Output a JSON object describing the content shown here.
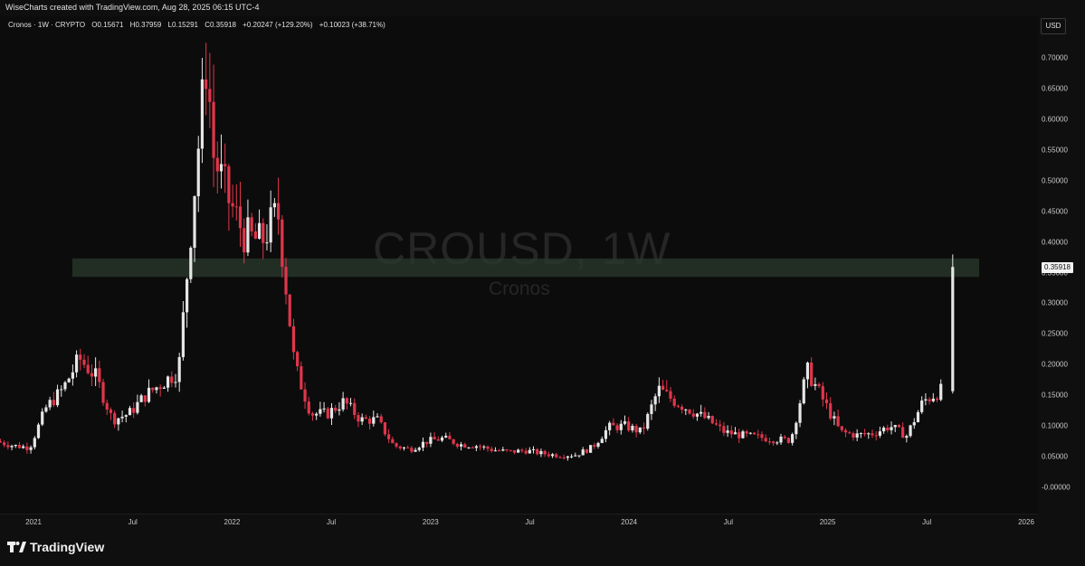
{
  "header": {
    "created_text": "WiseCharts created with TradingView.com, Aug 28, 2025 06:15 UTC-4",
    "legend": {
      "symbol": "Cronos · 1W · CRYPTO",
      "open": "O0.15671",
      "high": "H0.37959",
      "low": "L0.15291",
      "close": "C0.35918",
      "change": "+0.20247 (+129.20%)",
      "extra": "+0.10023 (+38.71%)"
    },
    "currency_button": "USD"
  },
  "watermark": {
    "ticker": "CROUSD, 1W",
    "name": "Cronos"
  },
  "current_price_label": "0.35918",
  "footer": {
    "logo_text": "TradingView"
  },
  "colors": {
    "up": "#e6e6e6",
    "down": "#e0364b",
    "zone": "#2a3a2c",
    "background": "#0c0c0c"
  },
  "chart_data": {
    "type": "candlestick",
    "interval": "1W",
    "y_tick_labels": [
      "0.70000",
      "0.65000",
      "0.60000",
      "0.55000",
      "0.50000",
      "0.45000",
      "0.40000",
      "0.35000",
      "0.30000",
      "0.25000",
      "0.20000",
      "0.15000",
      "0.10000",
      "0.05000",
      "-0.00000"
    ],
    "x_tick_labels": [
      "2021",
      "Jul",
      "2022",
      "Jul",
      "2023",
      "Jul",
      "2024",
      "Jul",
      "2025",
      "Jul",
      "2026"
    ],
    "ylim": [
      -0.01,
      0.72
    ],
    "x_start": "2021-01",
    "x_end": "2026-01",
    "resistance_zone": [
      0.343,
      0.373
    ],
    "last_candle": {
      "open": 0.15671,
      "high": 0.37959,
      "low": 0.15291,
      "close": 0.35918
    },
    "price_path": [
      [
        "2020-11",
        0.075
      ],
      [
        "2020-12",
        0.068
      ],
      [
        "2021-01",
        0.065
      ],
      [
        "2021-02",
        0.13
      ],
      [
        "2021-03",
        0.16
      ],
      [
        "2021-04",
        0.21
      ],
      [
        "2021-05",
        0.18
      ],
      [
        "2021-06",
        0.11
      ],
      [
        "2021-07",
        0.12
      ],
      [
        "2021-08",
        0.15
      ],
      [
        "2021-09",
        0.17
      ],
      [
        "2021-10",
        0.19
      ],
      [
        "2021-11",
        0.5
      ],
      [
        "2021-11-24",
        0.72
      ],
      [
        "2021-12",
        0.55
      ],
      [
        "2022-01",
        0.47
      ],
      [
        "2022-02",
        0.41
      ],
      [
        "2022-03",
        0.4
      ],
      [
        "2022-04",
        0.45
      ],
      [
        "2022-05",
        0.2
      ],
      [
        "2022-06",
        0.12
      ],
      [
        "2022-07",
        0.12
      ],
      [
        "2022-08",
        0.14
      ],
      [
        "2022-09",
        0.11
      ],
      [
        "2022-10",
        0.11
      ],
      [
        "2022-11",
        0.068
      ],
      [
        "2022-12",
        0.062
      ],
      [
        "2023-01",
        0.075
      ],
      [
        "2023-02",
        0.08
      ],
      [
        "2023-03",
        0.07
      ],
      [
        "2023-04",
        0.068
      ],
      [
        "2023-05",
        0.061
      ],
      [
        "2023-06",
        0.058
      ],
      [
        "2023-07",
        0.06
      ],
      [
        "2023-08",
        0.055
      ],
      [
        "2023-09",
        0.052
      ],
      [
        "2023-10",
        0.053
      ],
      [
        "2023-11",
        0.065
      ],
      [
        "2023-12",
        0.098
      ],
      [
        "2024-01",
        0.1
      ],
      [
        "2024-02",
        0.09
      ],
      [
        "2024-03",
        0.16
      ],
      [
        "2024-04",
        0.14
      ],
      [
        "2024-05",
        0.125
      ],
      [
        "2024-06",
        0.11
      ],
      [
        "2024-07",
        0.09
      ],
      [
        "2024-08",
        0.085
      ],
      [
        "2024-09",
        0.082
      ],
      [
        "2024-10",
        0.078
      ],
      [
        "2024-11",
        0.077
      ],
      [
        "2024-12",
        0.19
      ],
      [
        "2025-01",
        0.14
      ],
      [
        "2025-02",
        0.09
      ],
      [
        "2025-03",
        0.085
      ],
      [
        "2025-04",
        0.088
      ],
      [
        "2025-05",
        0.1
      ],
      [
        "2025-06",
        0.084
      ],
      [
        "2025-07",
        0.14
      ],
      [
        "2025-08",
        0.157
      ]
    ]
  }
}
